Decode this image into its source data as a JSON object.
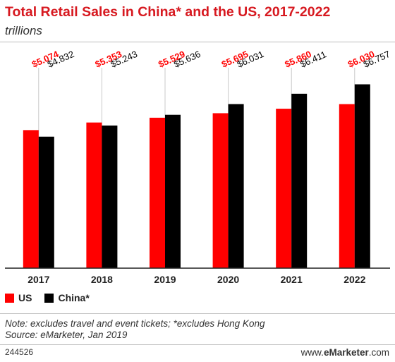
{
  "header": {
    "title": "Total Retail Sales in China* and the US, 2017-2022",
    "subtitle": "trillions"
  },
  "legend": {
    "items": [
      {
        "label": "US",
        "color": "#ff0000"
      },
      {
        "label": "China*",
        "color": "#000000"
      }
    ]
  },
  "notes": {
    "note": "Note: excludes travel and event tickets; *excludes Hong Kong",
    "source": "Source: eMarketer, Jan 2019"
  },
  "footer": {
    "chart_id": "244526",
    "brand_prefix": "www.",
    "brand_name": "eMarketer",
    "brand_suffix": ".com"
  },
  "chart_data": {
    "type": "bar",
    "title": "Total Retail Sales in China* and the US, 2017-2022",
    "subtitle": "trillions",
    "categories": [
      "2017",
      "2018",
      "2019",
      "2020",
      "2021",
      "2022"
    ],
    "series": [
      {
        "name": "US",
        "color": "#ff0000",
        "values": [
          5.074,
          5.353,
          5.529,
          5.695,
          5.86,
          6.03
        ],
        "labels": [
          "$5.074",
          "$5.353",
          "$5.529",
          "$5.695",
          "$5.860",
          "$6.030"
        ]
      },
      {
        "name": "China*",
        "color": "#000000",
        "values": [
          4.832,
          5.243,
          5.636,
          6.031,
          6.411,
          6.757
        ],
        "labels": [
          "$4.832",
          "$5.243",
          "$5.636",
          "$6.031",
          "$6.411",
          "$6.757"
        ]
      }
    ],
    "ylim": [
      0,
      8.3
    ],
    "grid": false,
    "legend_position": "bottom-left"
  }
}
